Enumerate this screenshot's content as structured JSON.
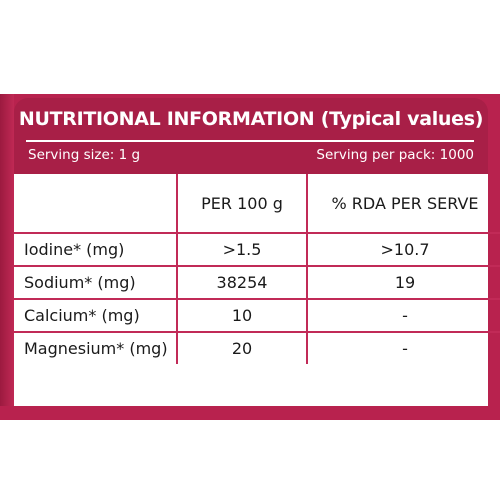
{
  "panel": {
    "title": "NUTRITIONAL INFORMATION (Typical values)",
    "serving_size": "Serving size: 1 g",
    "serving_per_pack": "Serving per pack: 1000"
  },
  "table": {
    "headers": [
      "",
      "PER 100 g",
      "% RDA PER SERVE"
    ],
    "rows": [
      {
        "name": "Iodine* (mg)",
        "per100": ">1.5",
        "rda": ">10.7"
      },
      {
        "name": "Sodium* (mg)",
        "per100": "38254",
        "rda": "19"
      },
      {
        "name": "Calcium* (mg)",
        "per100": "10",
        "rda": "-"
      },
      {
        "name": "Magnesium* (mg)",
        "per100": "20",
        "rda": "-"
      }
    ]
  },
  "colors": {
    "brand": "#b8224e",
    "header_band": "#a81f47",
    "grid_line": "#c12a57"
  }
}
